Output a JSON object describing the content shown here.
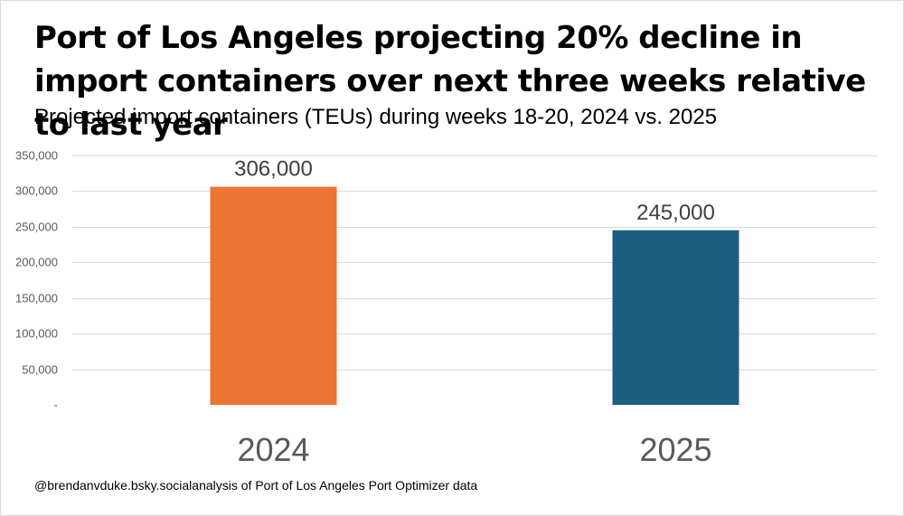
{
  "chart_data": {
    "type": "bar",
    "title": "Port of Los Angeles projecting 20% decline in import containers over next three weeks relative to last year",
    "subtitle": "Projected import containers (TEUs) during weeks 18-20, 2024 vs. 2025",
    "categories": [
      "2024",
      "2025"
    ],
    "values": [
      306000,
      245000
    ],
    "data_labels": [
      "306,000",
      "245,000"
    ],
    "colors": [
      "#ED7433",
      "#1B5E82"
    ],
    "xlabel": "",
    "ylabel": "",
    "ylim": [
      0,
      350000
    ],
    "yticks": [
      0,
      50000,
      100000,
      150000,
      200000,
      250000,
      300000,
      350000
    ],
    "ytick_labels": [
      "-",
      "50,000",
      "100,000",
      "150,000",
      "200,000",
      "250,000",
      "300,000",
      "350,000"
    ],
    "grid": true,
    "legend": "none"
  },
  "footer": {
    "credit": "@brendanvduke.bsky.social",
    "source": "analysis of Port of Los Angeles Port Optimizer data"
  }
}
